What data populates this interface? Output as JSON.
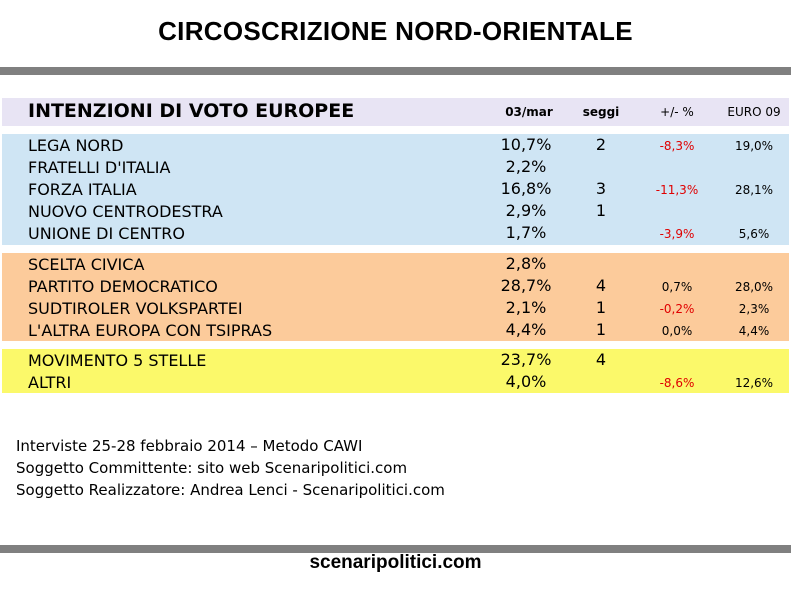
{
  "page": {
    "title": "CIRCOSCRIZIONE NORD-ORIENTALE",
    "footer": "scenaripolitici.com",
    "notes": [
      "Interviste 25-28 febbraio 2014 – Metodo CAWI",
      "Soggetto Committente: sito web Scenaripolitici.com",
      "Soggetto Realizzatore: Andrea Lenci - Scenaripolitici.com"
    ]
  },
  "colors": {
    "rule": "#808080",
    "header_bg": "#e8e4f4",
    "group_blue": "#cfe5f4",
    "group_orange": "#fccb9b",
    "group_yellow": "#fbf96a",
    "negative": "#e00000"
  },
  "chart_data": {
    "type": "table",
    "title": "INTENZIONI DI VOTO EUROPEE",
    "columns": [
      "03/mar",
      "seggi",
      "+/- %",
      "EURO 09"
    ],
    "groups": [
      {
        "rows": [
          {
            "party": "LEGA NORD",
            "pct": "10,7%",
            "seats": "2",
            "delta": "-8,3%",
            "euro09": "19,0%"
          },
          {
            "party": "FRATELLI D'ITALIA",
            "pct": "2,2%",
            "seats": "",
            "delta": "",
            "euro09": ""
          },
          {
            "party": "FORZA ITALIA",
            "pct": "16,8%",
            "seats": "3",
            "delta": "-11,3%",
            "euro09": "28,1%"
          },
          {
            "party": "NUOVO CENTRODESTRA",
            "pct": "2,9%",
            "seats": "1",
            "delta": "",
            "euro09": ""
          },
          {
            "party": "UNIONE DI CENTRO",
            "pct": "1,7%",
            "seats": "",
            "delta": "-3,9%",
            "euro09": "5,6%"
          }
        ]
      },
      {
        "rows": [
          {
            "party": "SCELTA CIVICA",
            "pct": "2,8%",
            "seats": "",
            "delta": "",
            "euro09": ""
          },
          {
            "party": "PARTITO DEMOCRATICO",
            "pct": "28,7%",
            "seats": "4",
            "delta": "0,7%",
            "euro09": "28,0%"
          },
          {
            "party": "SUDTIROLER VOLKSPARTEI",
            "pct": "2,1%",
            "seats": "1",
            "delta": "-0,2%",
            "euro09": "2,3%"
          },
          {
            "party": "L'ALTRA EUROPA CON TSIPRAS",
            "pct": "4,4%",
            "seats": "1",
            "delta": "0,0%",
            "euro09": "4,4%"
          }
        ]
      },
      {
        "rows": [
          {
            "party": "MOVIMENTO 5 STELLE",
            "pct": "23,7%",
            "seats": "4",
            "delta": "",
            "euro09": ""
          },
          {
            "party": "ALTRI",
            "pct": "4,0%",
            "seats": "",
            "delta": "-8,6%",
            "euro09": "12,6%"
          }
        ]
      }
    ]
  }
}
